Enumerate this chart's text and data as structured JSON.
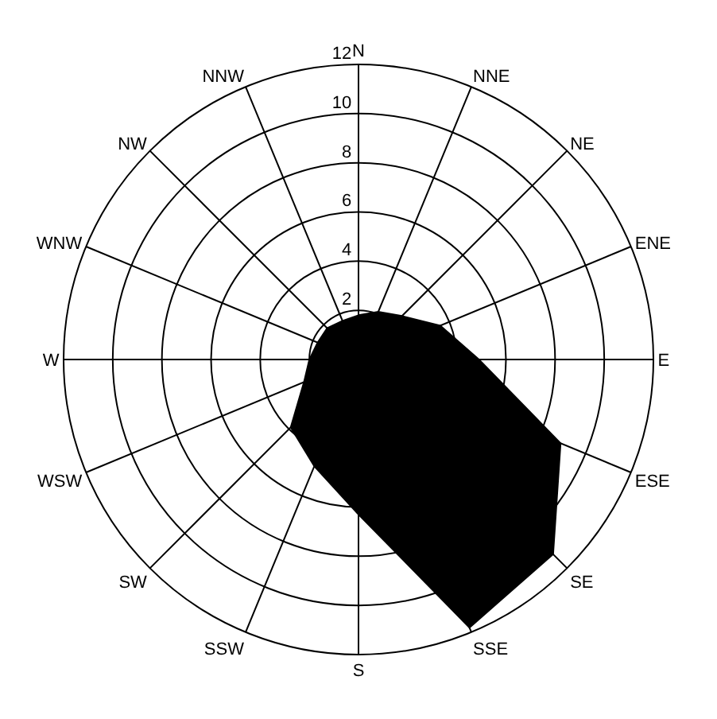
{
  "chart_data": {
    "type": "radar",
    "categories": [
      "N",
      "NNE",
      "NE",
      "ENE",
      "E",
      "ESE",
      "SE",
      "SSE",
      "S",
      "SSW",
      "SW",
      "WSW",
      "W",
      "WNW",
      "NW",
      "NNW"
    ],
    "series": [
      {
        "color": "#000000",
        "values": [
          1.8,
          2.1,
          2.5,
          3.6,
          4.9,
          8.9,
          11.2,
          11.8,
          6.3,
          4.7,
          3.9,
          2.4,
          2.0,
          1.8,
          1.8,
          1.7
        ]
      }
    ],
    "ylim": [
      0,
      12
    ],
    "yticks": [
      2,
      4,
      6,
      8,
      10,
      12
    ],
    "grid": true,
    "marker": "none"
  }
}
